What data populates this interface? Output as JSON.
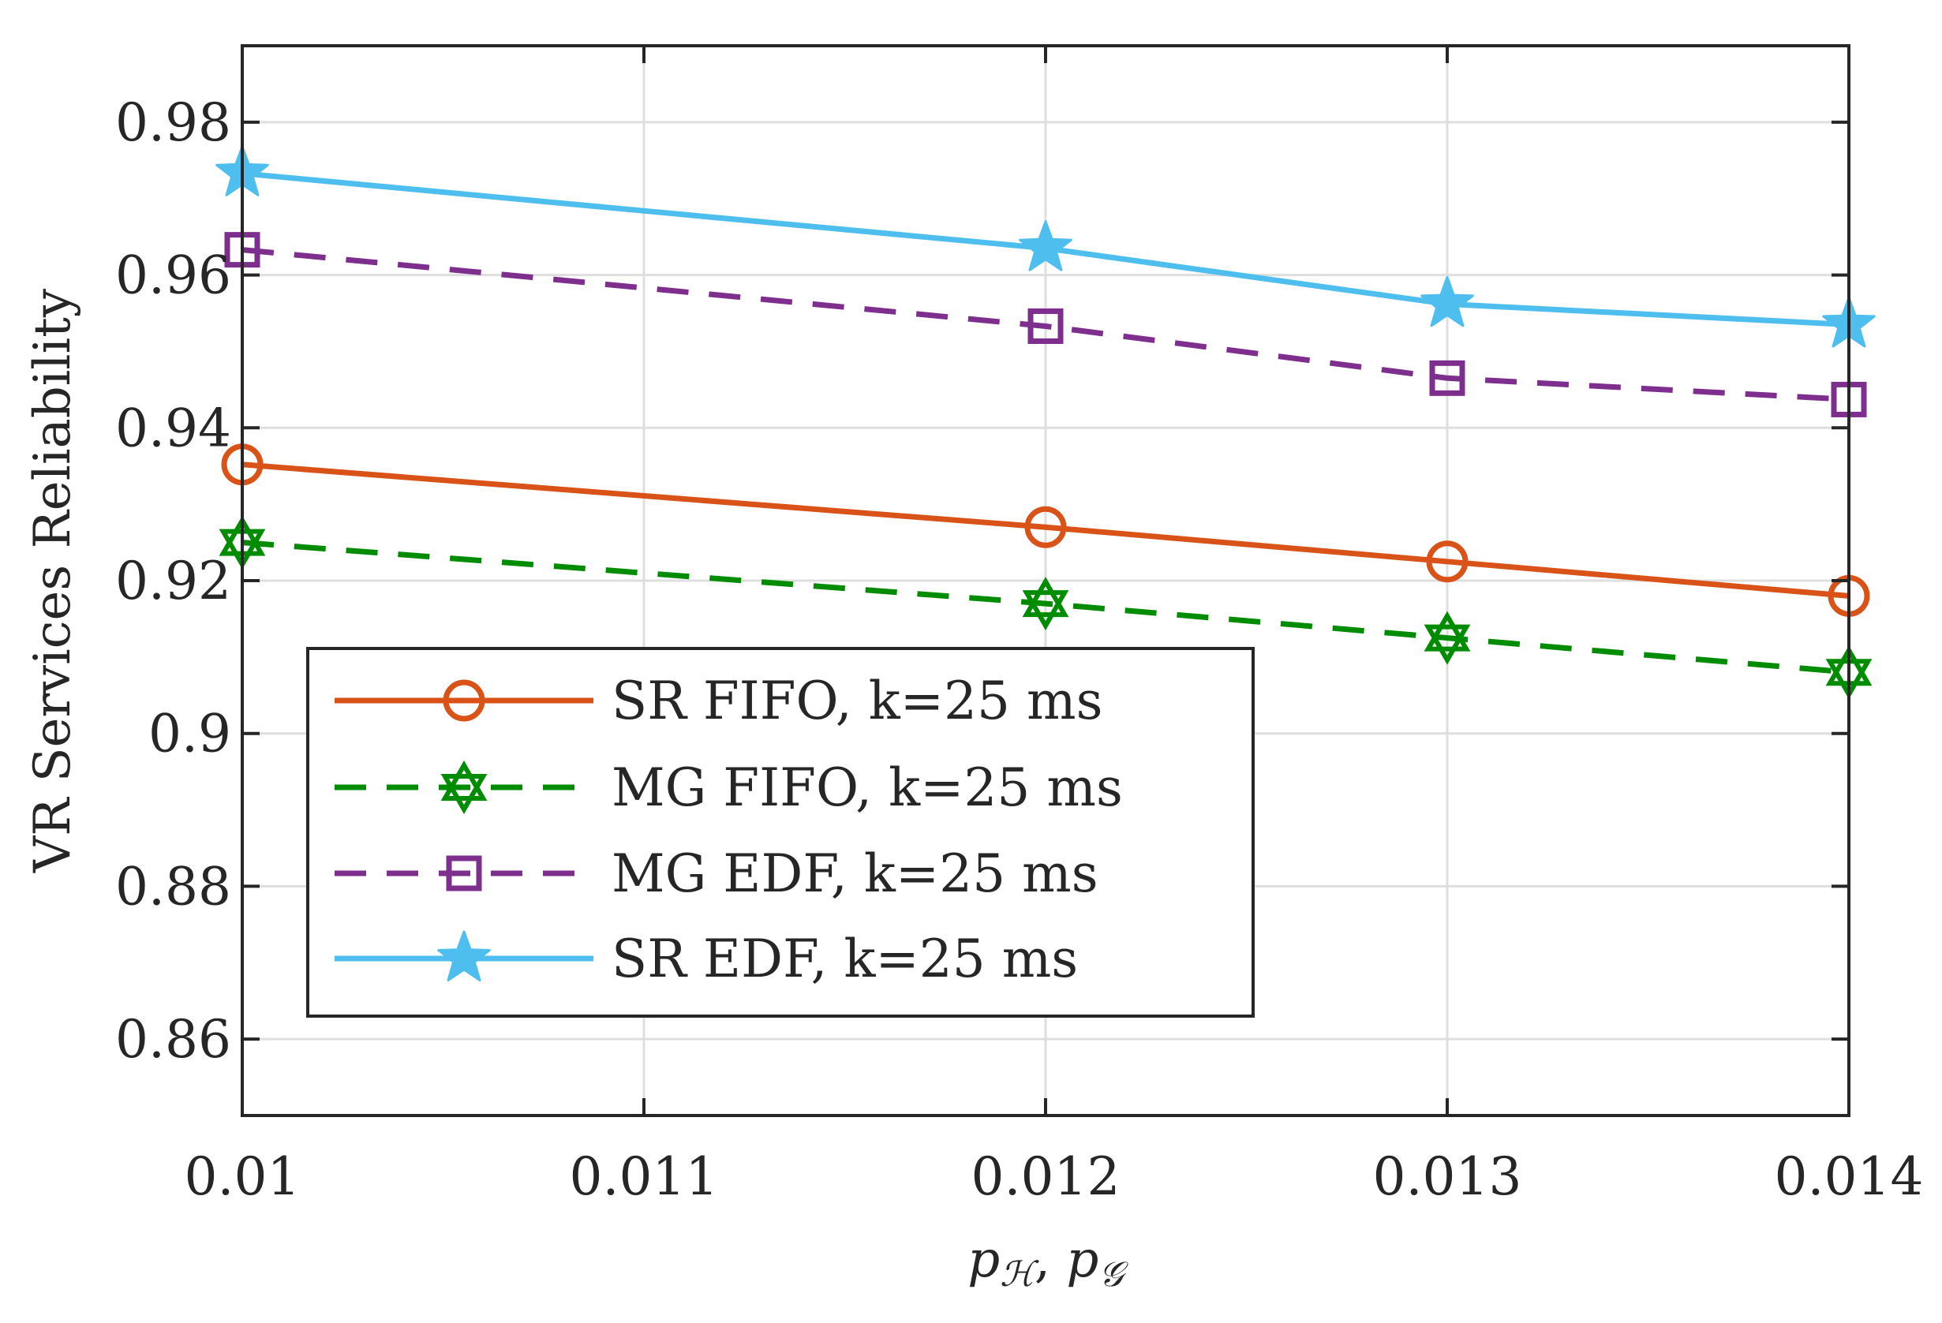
{
  "chart_data": {
    "type": "line",
    "title": "",
    "xlabel": "p_H, p_G",
    "xlabel_parts": {
      "p1": "p",
      "sub1": "ℋ",
      "sep": ", ",
      "p2": "p",
      "sub2": "𝒢"
    },
    "ylabel": "VR Services Reliability",
    "x": [
      0.01,
      0.012,
      0.013,
      0.014
    ],
    "xlim": [
      0.01,
      0.014
    ],
    "ylim": [
      0.85,
      0.99
    ],
    "xticks": [
      0.01,
      0.011,
      0.012,
      0.013,
      0.014
    ],
    "xtick_labels": [
      "0.01",
      "0.011",
      "0.012",
      "0.013",
      "0.014"
    ],
    "yticks": [
      0.86,
      0.88,
      0.9,
      0.92,
      0.94,
      0.96,
      0.98
    ],
    "ytick_labels": [
      "0.86",
      "0.88",
      "0.9",
      "0.92",
      "0.94",
      "0.96",
      "0.98"
    ],
    "grid": true,
    "legend_position": "lower-left",
    "series": [
      {
        "name": "SR FIFO, k=25 ms",
        "color": "#D95319",
        "line": "solid",
        "marker": "circle",
        "values": [
          0.9352,
          0.927,
          0.9225,
          0.918
        ]
      },
      {
        "name": "MG FIFO, k=25 ms",
        "color": "#008C00",
        "line": "dashed",
        "marker": "hexagram",
        "values": [
          0.925,
          0.917,
          0.9125,
          0.908
        ]
      },
      {
        "name": "MG EDF, k=25 ms",
        "color": "#7E2F8E",
        "line": "dashed",
        "marker": "square",
        "values": [
          0.9633,
          0.9533,
          0.9465,
          0.9437
        ]
      },
      {
        "name": "SR EDF, k=25 ms",
        "color": "#4DBEEE",
        "line": "solid",
        "marker": "pentagram",
        "values": [
          0.9733,
          0.9635,
          0.9562,
          0.9535
        ]
      }
    ]
  }
}
